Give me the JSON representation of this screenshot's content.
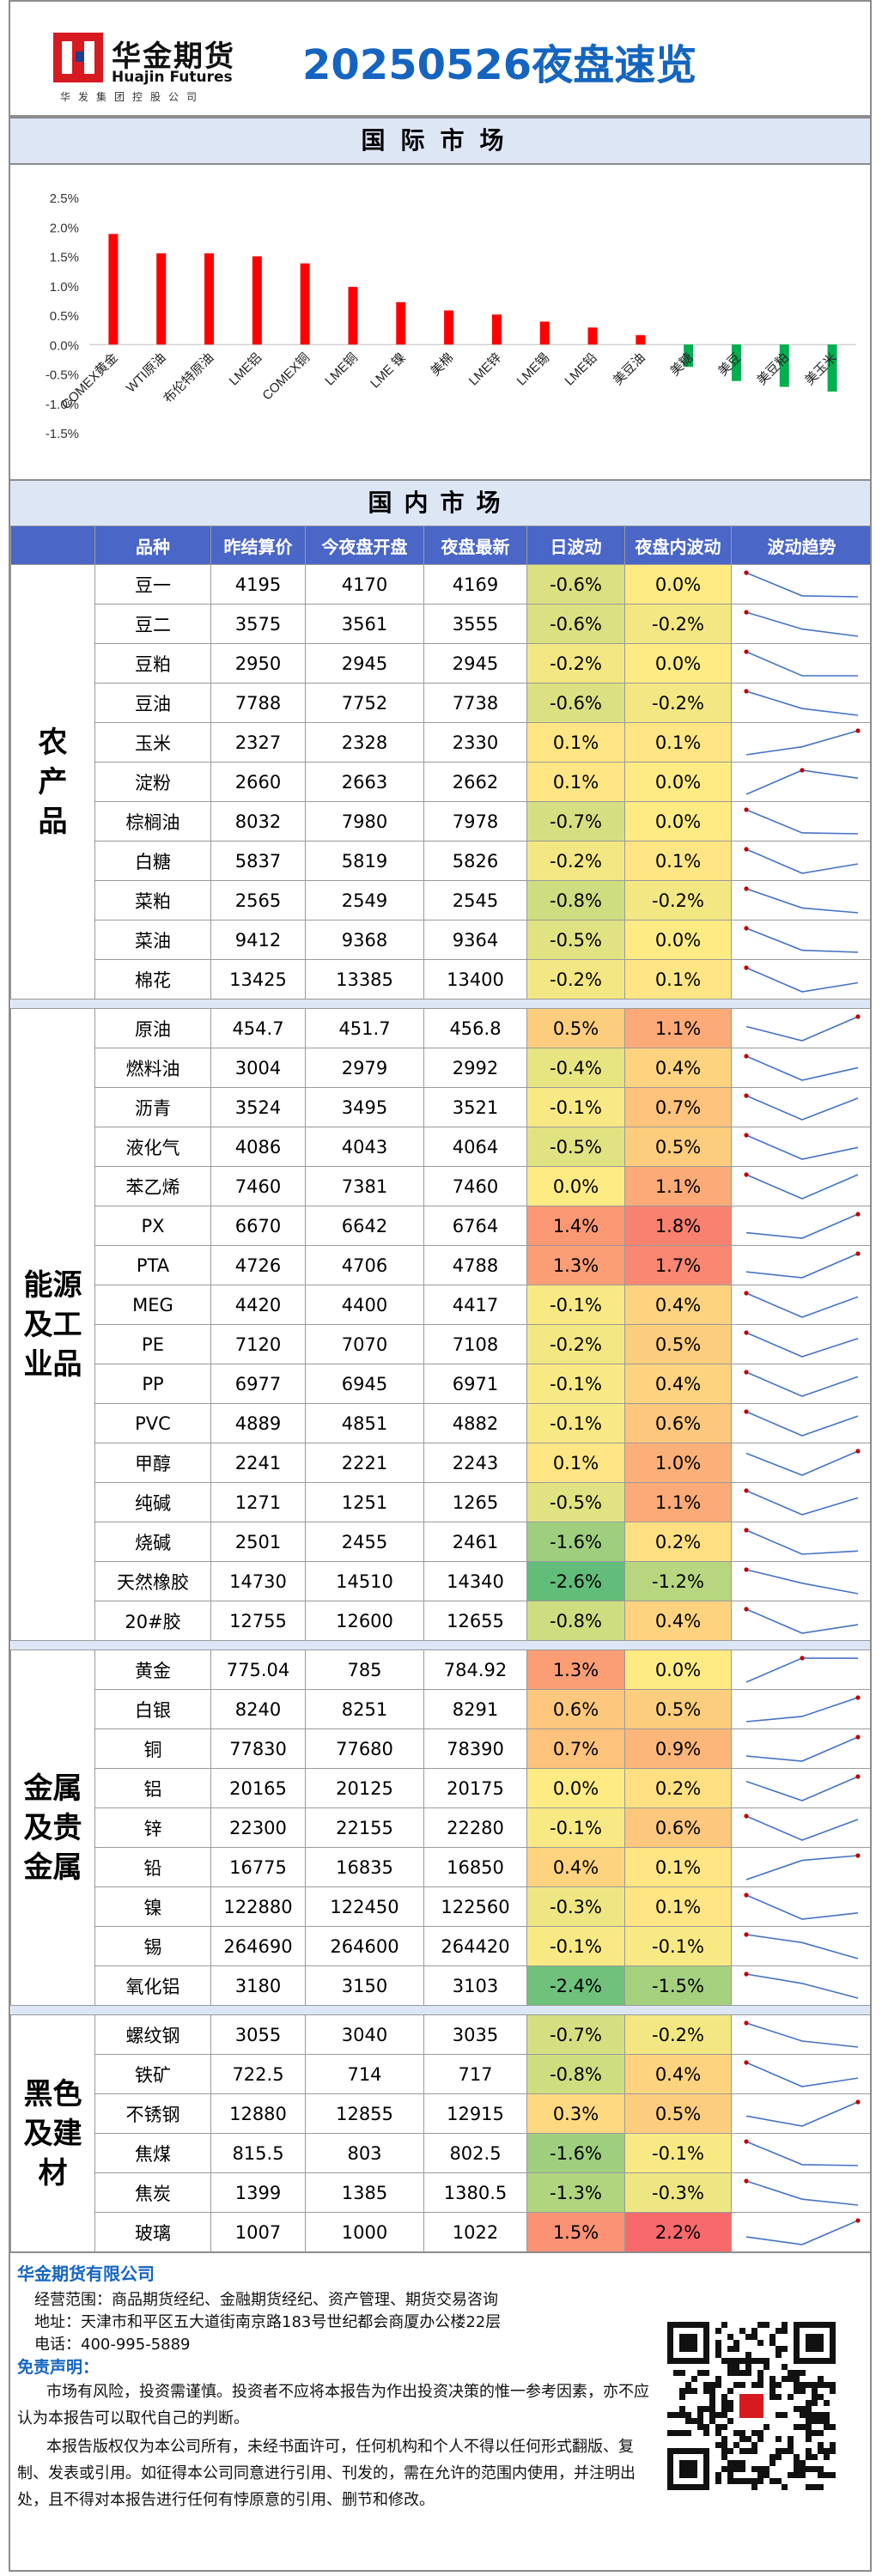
{
  "header": {
    "logo_cn": "华金期货",
    "logo_en": "Huajin Futures",
    "logo_sub": "华发集团控股公司",
    "title": "20250526夜盘速览"
  },
  "sections": {
    "international": "国际市场",
    "domestic": "国内市场"
  },
  "chart_data": {
    "type": "bar",
    "title": "",
    "xlabel": "",
    "ylabel": "",
    "ylim": [
      -1.5,
      2.5
    ],
    "yticks": [
      "2.5%",
      "2.0%",
      "1.5%",
      "1.0%",
      "0.5%",
      "0.0%",
      "-0.5%",
      "-1.0%",
      "-1.5%"
    ],
    "ytick_values": [
      2.5,
      2.0,
      1.5,
      1.0,
      0.5,
      0.0,
      -0.5,
      -1.0,
      -1.5
    ],
    "categories": [
      "COMEX黄金",
      "WTI原油",
      "布伦特原油",
      "LME铝",
      "COMEX铜",
      "LME铜",
      "LME 镍",
      "美棉",
      "LME锌",
      "LME锡",
      "LME铅",
      "美豆油",
      "美糖",
      "美豆",
      "美豆粕",
      "美玉米"
    ],
    "values": [
      1.88,
      1.55,
      1.55,
      1.5,
      1.38,
      0.98,
      0.72,
      0.58,
      0.51,
      0.39,
      0.29,
      0.16,
      -0.38,
      -0.62,
      -0.72,
      -0.8
    ],
    "colors": {
      "positive": "#ff0000",
      "negative": "#00b050"
    },
    "grid": false,
    "legend": "none"
  },
  "table": {
    "headers": [
      "品种",
      "昨结算价",
      "今夜盘开盘",
      "夜盘最新",
      "日波动",
      "夜盘内波动",
      "波动趋势"
    ],
    "groups": [
      {
        "name": "农产品",
        "rows": [
          {
            "name": "豆一",
            "prev": "4195",
            "open": "4170",
            "last": "4169",
            "day": "-0.6%",
            "night": "0.0%"
          },
          {
            "name": "豆二",
            "prev": "3575",
            "open": "3561",
            "last": "3555",
            "day": "-0.6%",
            "night": "-0.2%"
          },
          {
            "name": "豆粕",
            "prev": "2950",
            "open": "2945",
            "last": "2945",
            "day": "-0.2%",
            "night": "0.0%"
          },
          {
            "name": "豆油",
            "prev": "7788",
            "open": "7752",
            "last": "7738",
            "day": "-0.6%",
            "night": "-0.2%"
          },
          {
            "name": "玉米",
            "prev": "2327",
            "open": "2328",
            "last": "2330",
            "day": "0.1%",
            "night": "0.1%"
          },
          {
            "name": "淀粉",
            "prev": "2660",
            "open": "2663",
            "last": "2662",
            "day": "0.1%",
            "night": "0.0%"
          },
          {
            "name": "棕榈油",
            "prev": "8032",
            "open": "7980",
            "last": "7978",
            "day": "-0.7%",
            "night": "0.0%"
          },
          {
            "name": "白糖",
            "prev": "5837",
            "open": "5819",
            "last": "5826",
            "day": "-0.2%",
            "night": "0.1%"
          },
          {
            "name": "菜粕",
            "prev": "2565",
            "open": "2549",
            "last": "2545",
            "day": "-0.8%",
            "night": "-0.2%"
          },
          {
            "name": "菜油",
            "prev": "9412",
            "open": "9368",
            "last": "9364",
            "day": "-0.5%",
            "night": "0.0%"
          },
          {
            "name": "棉花",
            "prev": "13425",
            "open": "13385",
            "last": "13400",
            "day": "-0.2%",
            "night": "0.1%"
          }
        ]
      },
      {
        "name": "能源及工业品",
        "rows": [
          {
            "name": "原油",
            "prev": "454.7",
            "open": "451.7",
            "last": "456.8",
            "day": "0.5%",
            "night": "1.1%"
          },
          {
            "name": "燃料油",
            "prev": "3004",
            "open": "2979",
            "last": "2992",
            "day": "-0.4%",
            "night": "0.4%"
          },
          {
            "name": "沥青",
            "prev": "3524",
            "open": "3495",
            "last": "3521",
            "day": "-0.1%",
            "night": "0.7%"
          },
          {
            "name": "液化气",
            "prev": "4086",
            "open": "4043",
            "last": "4064",
            "day": "-0.5%",
            "night": "0.5%"
          },
          {
            "name": "苯乙烯",
            "prev": "7460",
            "open": "7381",
            "last": "7460",
            "day": "0.0%",
            "night": "1.1%"
          },
          {
            "name": "PX",
            "prev": "6670",
            "open": "6642",
            "last": "6764",
            "day": "1.4%",
            "night": "1.8%"
          },
          {
            "name": "PTA",
            "prev": "4726",
            "open": "4706",
            "last": "4788",
            "day": "1.3%",
            "night": "1.7%"
          },
          {
            "name": "MEG",
            "prev": "4420",
            "open": "4400",
            "last": "4417",
            "day": "-0.1%",
            "night": "0.4%"
          },
          {
            "name": "PE",
            "prev": "7120",
            "open": "7070",
            "last": "7108",
            "day": "-0.2%",
            "night": "0.5%"
          },
          {
            "name": "PP",
            "prev": "6977",
            "open": "6945",
            "last": "6971",
            "day": "-0.1%",
            "night": "0.4%"
          },
          {
            "name": "PVC",
            "prev": "4889",
            "open": "4851",
            "last": "4882",
            "day": "-0.1%",
            "night": "0.6%"
          },
          {
            "name": "甲醇",
            "prev": "2241",
            "open": "2221",
            "last": "2243",
            "day": "0.1%",
            "night": "1.0%"
          },
          {
            "name": "纯碱",
            "prev": "1271",
            "open": "1251",
            "last": "1265",
            "day": "-0.5%",
            "night": "1.1%"
          },
          {
            "name": "烧碱",
            "prev": "2501",
            "open": "2455",
            "last": "2461",
            "day": "-1.6%",
            "night": "0.2%"
          },
          {
            "name": "天然橡胶",
            "prev": "14730",
            "open": "14510",
            "last": "14340",
            "day": "-2.6%",
            "night": "-1.2%"
          },
          {
            "name": "20#胶",
            "prev": "12755",
            "open": "12600",
            "last": "12655",
            "day": "-0.8%",
            "night": "0.4%"
          }
        ]
      },
      {
        "name": "金属及贵金属",
        "rows": [
          {
            "name": "黄金",
            "prev": "775.04",
            "open": "785",
            "last": "784.92",
            "day": "1.3%",
            "night": "0.0%"
          },
          {
            "name": "白银",
            "prev": "8240",
            "open": "8251",
            "last": "8291",
            "day": "0.6%",
            "night": "0.5%"
          },
          {
            "name": "铜",
            "prev": "77830",
            "open": "77680",
            "last": "78390",
            "day": "0.7%",
            "night": "0.9%"
          },
          {
            "name": "铝",
            "prev": "20165",
            "open": "20125",
            "last": "20175",
            "day": "0.0%",
            "night": "0.2%"
          },
          {
            "name": "锌",
            "prev": "22300",
            "open": "22155",
            "last": "22280",
            "day": "-0.1%",
            "night": "0.6%"
          },
          {
            "name": "铅",
            "prev": "16775",
            "open": "16835",
            "last": "16850",
            "day": "0.4%",
            "night": "0.1%"
          },
          {
            "name": "镍",
            "prev": "122880",
            "open": "122450",
            "last": "122560",
            "day": "-0.3%",
            "night": "0.1%"
          },
          {
            "name": "锡",
            "prev": "264690",
            "open": "264600",
            "last": "264420",
            "day": "-0.1%",
            "night": "-0.1%"
          },
          {
            "name": "氧化铝",
            "prev": "3180",
            "open": "3150",
            "last": "3103",
            "day": "-2.4%",
            "night": "-1.5%"
          }
        ]
      },
      {
        "name": "黑色及建材",
        "rows": [
          {
            "name": "螺纹钢",
            "prev": "3055",
            "open": "3040",
            "last": "3035",
            "day": "-0.7%",
            "night": "-0.2%"
          },
          {
            "name": "铁矿",
            "prev": "722.5",
            "open": "714",
            "last": "717",
            "day": "-0.8%",
            "night": "0.4%"
          },
          {
            "name": "不锈钢",
            "prev": "12880",
            "open": "12855",
            "last": "12915",
            "day": "0.3%",
            "night": "0.5%"
          },
          {
            "name": "焦煤",
            "prev": "815.5",
            "open": "803",
            "last": "802.5",
            "day": "-1.6%",
            "night": "-0.1%"
          },
          {
            "name": "焦炭",
            "prev": "1399",
            "open": "1385",
            "last": "1380.5",
            "day": "-1.3%",
            "night": "-0.3%"
          },
          {
            "name": "玻璃",
            "prev": "1007",
            "open": "1000",
            "last": "1022",
            "day": "1.5%",
            "night": "2.2%"
          }
        ]
      }
    ]
  },
  "footer": {
    "company": "华金期货有限公司",
    "scope": "经营范围：商品期货经纪、金融期货经纪、资产管理、期货交易咨询",
    "address": "地址：天津市和平区五大道街南京路183号世纪都会商厦办公楼22层",
    "phone": "电话：400-995-5889",
    "disclaimer_title": "免责声明：",
    "disclaimer_1": "市场有风险，投资需谨慎。投资者不应将本报告为作出投资决策的惟一参考因素，亦不应认为本报告可以取代自己的判断。",
    "disclaimer_2": "本报告版权仅为本公司所有，未经书面许可，任何机构和个人不得以任何形式翻版、复制、发表或引用。如征得本公司同意进行引用、刊发的，需在允许的范围内使用，并注明出处，且不得对本报告进行任何有悖原意的引用、删节和修改。"
  }
}
